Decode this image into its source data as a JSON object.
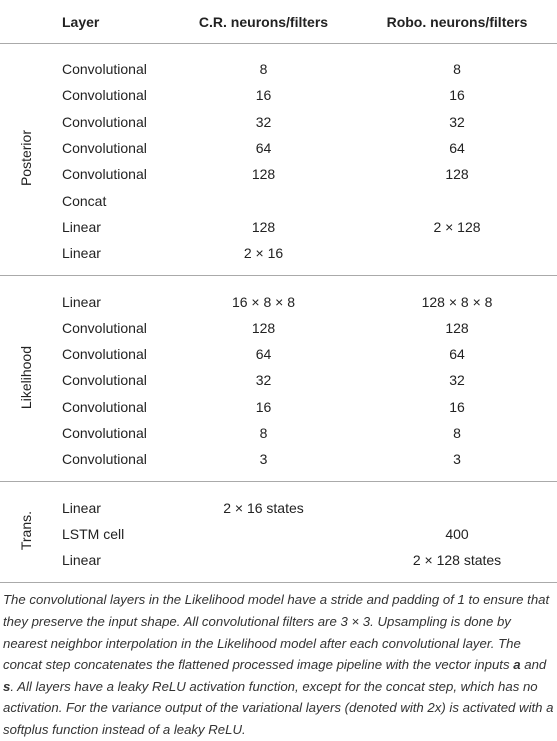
{
  "table": {
    "header": [
      "Layer",
      "C.R. neurons/filters",
      "Robo. neurons/filters"
    ],
    "sections": [
      {
        "label": "Posterior",
        "rows": [
          [
            "Convolutional",
            "8",
            "8"
          ],
          [
            "Convolutional",
            "16",
            "16"
          ],
          [
            "Convolutional",
            "32",
            "32"
          ],
          [
            "Convolutional",
            "64",
            "64"
          ],
          [
            "Convolutional",
            "128",
            "128"
          ],
          [
            "Concat",
            null,
            null
          ],
          [
            "Linear",
            "128",
            "2 × 128"
          ],
          [
            "Linear",
            "2 × 16",
            null
          ]
        ]
      },
      {
        "label": "Likelihood",
        "rows": [
          [
            "Linear",
            "16 × 8 × 8",
            "128 × 8 × 8"
          ],
          [
            "Convolutional",
            "128",
            "128"
          ],
          [
            "Convolutional",
            "64",
            "64"
          ],
          [
            "Convolutional",
            "32",
            "32"
          ],
          [
            "Convolutional",
            "16",
            "16"
          ],
          [
            "Convolutional",
            "8",
            "8"
          ],
          [
            "Convolutional",
            "3",
            "3"
          ]
        ]
      },
      {
        "label": "Trans.",
        "rows": [
          [
            "Linear",
            "2 × 16 states",
            null
          ],
          [
            "LSTM cell",
            null,
            "400"
          ],
          [
            "Linear",
            null,
            "2 × 128 states"
          ]
        ]
      }
    ],
    "caption": [
      "The convolutional layers in the Likelihood model have a stride and padding of 1 to ensure that they preserve the input shape. All convolutional filters are 3 × 3. Upsampling is done by nearest neighbor interpolation in the Likelihood model after each convolutional layer. The concat step concatenates the flattened processed image pipeline with the vector inputs ",
      "a",
      " and ",
      "s",
      ". All layers have a leaky ReLU activation function, except for the concat step, which has no activation. For the variance output of the variational layers (denoted with 2x) is activated with a softplus function instead of a leaky ReLU."
    ]
  }
}
